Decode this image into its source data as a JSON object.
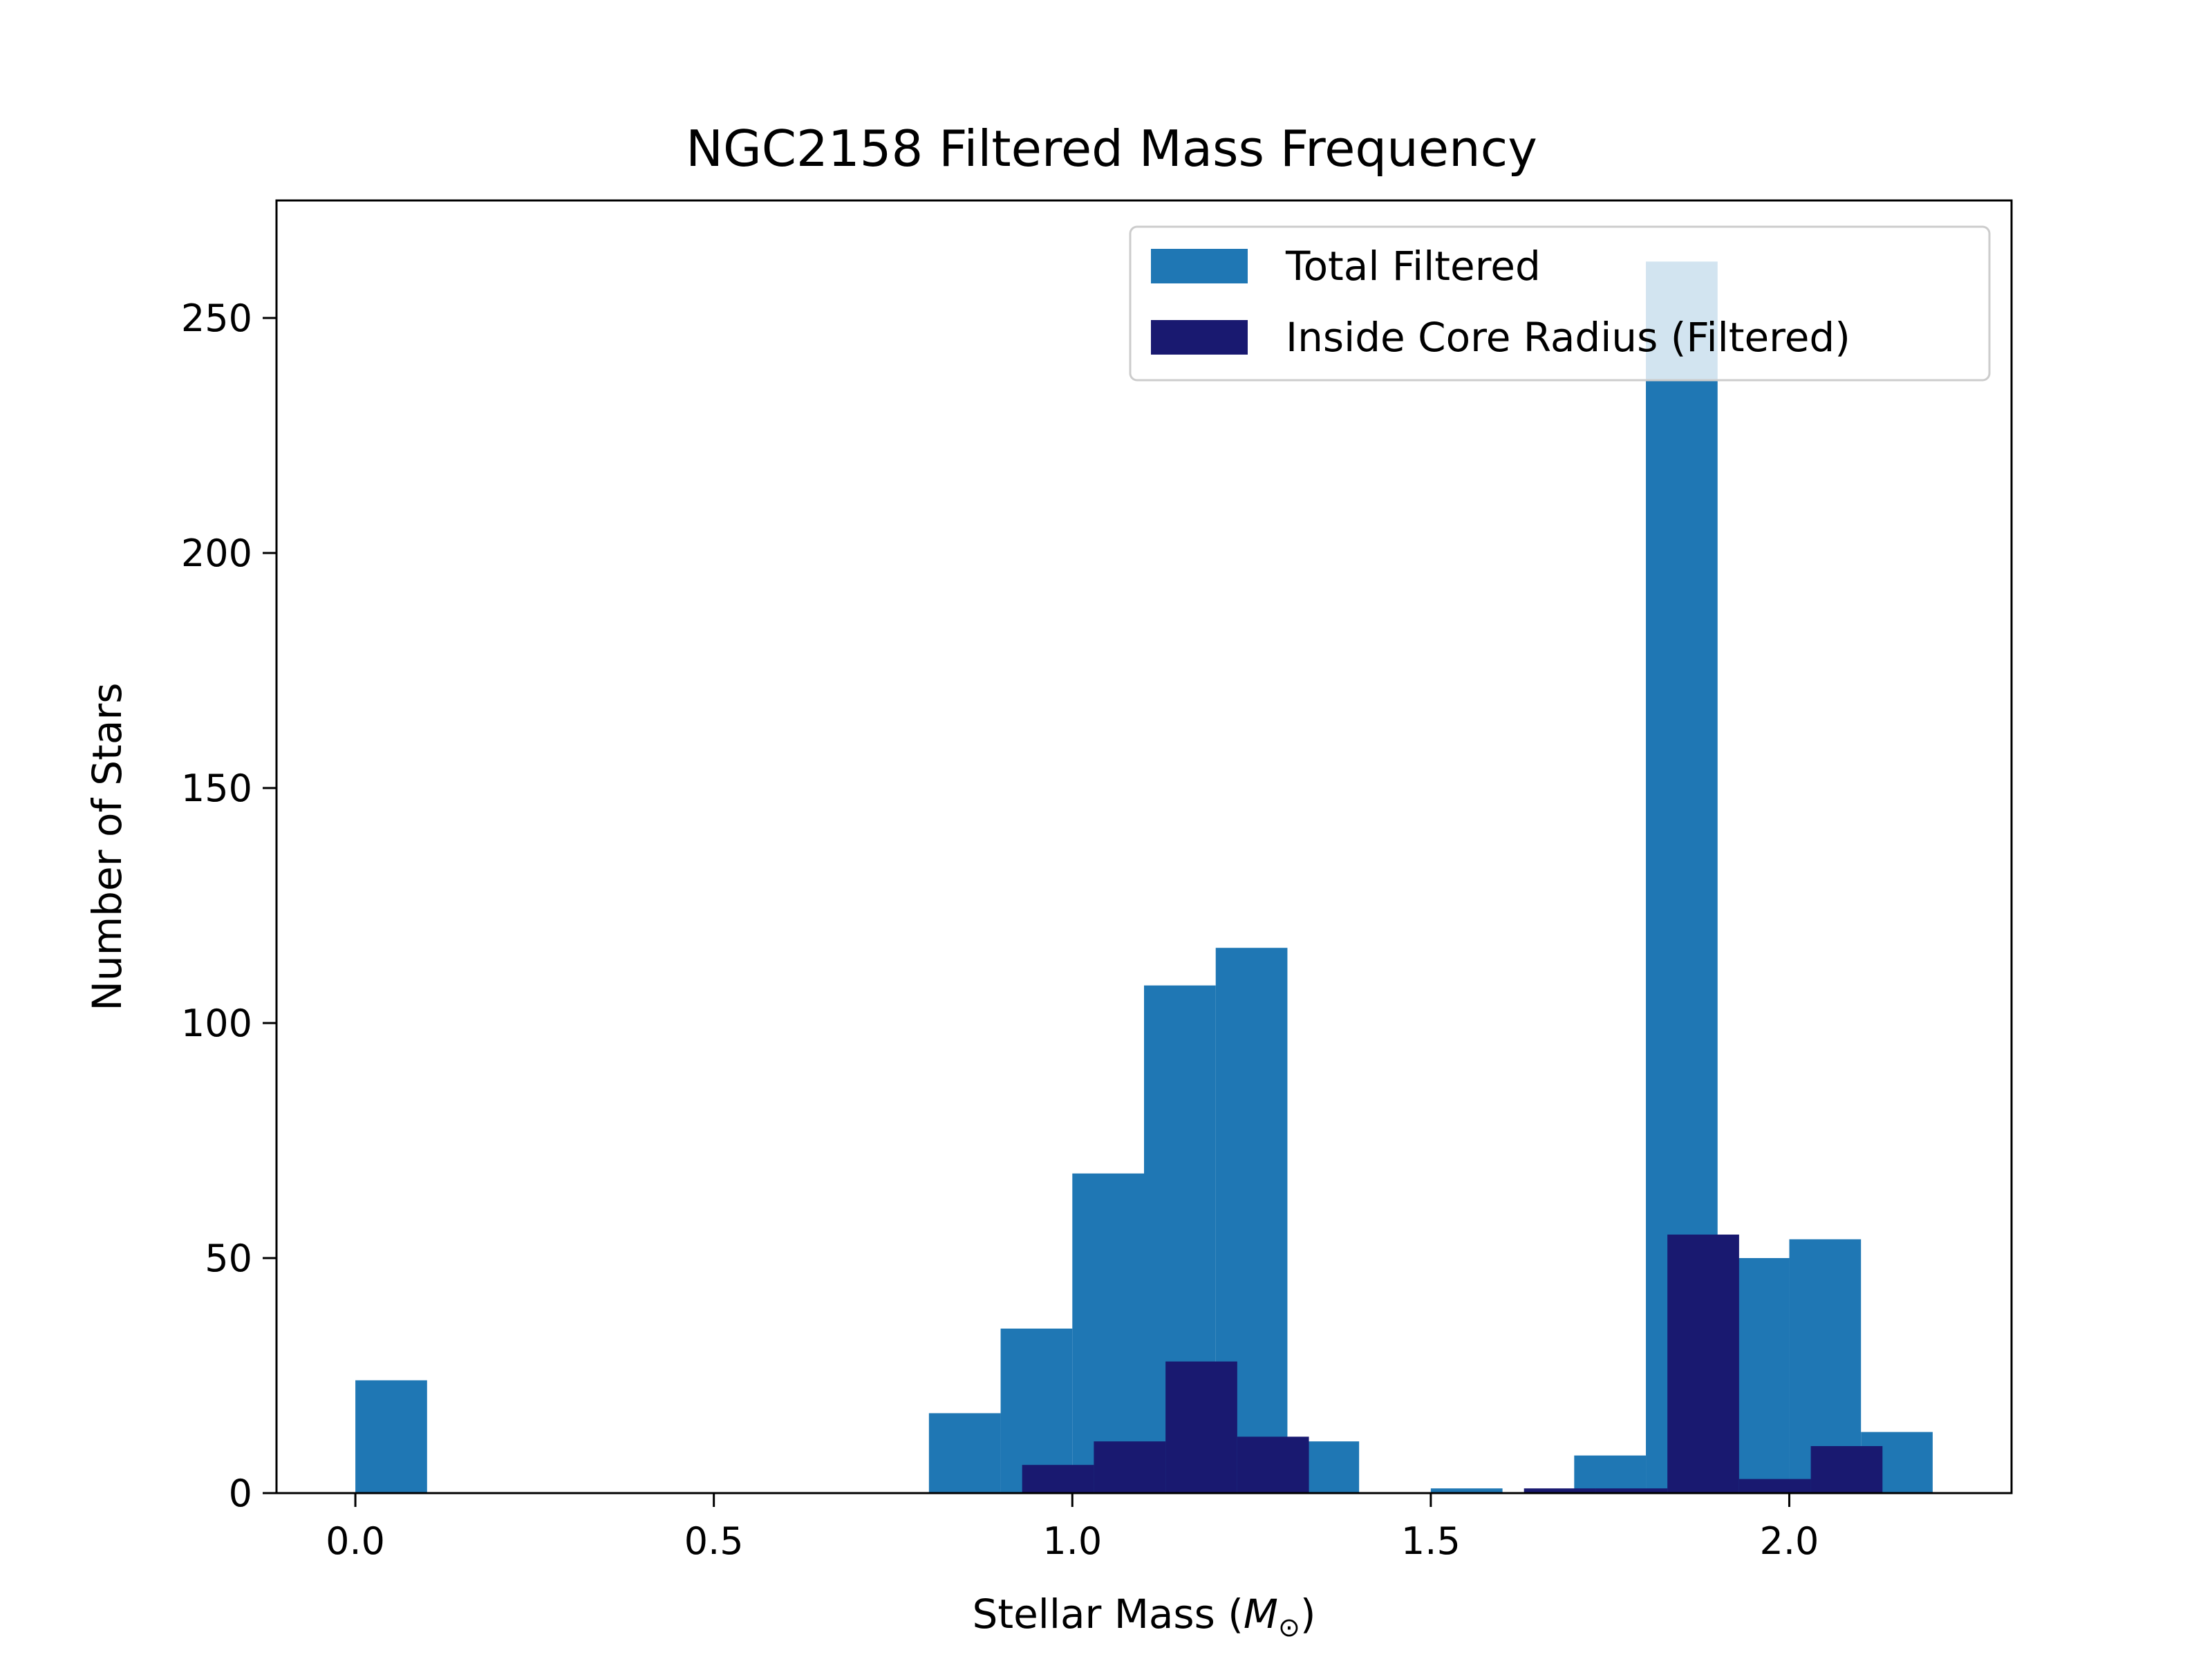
{
  "chart_data": {
    "type": "bar",
    "title": "NGC2158 Filtered Mass Frequency",
    "xlabel_main": "Stellar Mass (",
    "xlabel_symbol": "M",
    "xlabel_sub": "⊙",
    "xlabel_end": ")",
    "ylabel": "Number of Stars",
    "xlim": [
      -0.11,
      2.31
    ],
    "ylim": [
      0,
      275
    ],
    "xticks": [
      0.0,
      0.5,
      1.0,
      1.5,
      2.0
    ],
    "xtick_labels": [
      "0.0",
      "0.5",
      "1.0",
      "1.5",
      "2.0"
    ],
    "yticks": [
      0,
      50,
      100,
      150,
      200,
      250
    ],
    "ytick_labels": [
      "0",
      "50",
      "100",
      "150",
      "200",
      "250"
    ],
    "legend_position": "upper right",
    "series": [
      {
        "name": "Total Filtered",
        "color": "#1f77b4",
        "bins": [
          {
            "x0": 0.0,
            "x1": 0.1,
            "count": 24
          },
          {
            "x0": 0.8,
            "x1": 0.9,
            "count": 17
          },
          {
            "x0": 0.9,
            "x1": 1.0,
            "count": 35
          },
          {
            "x0": 1.0,
            "x1": 1.1,
            "count": 68
          },
          {
            "x0": 1.1,
            "x1": 1.2,
            "count": 108
          },
          {
            "x0": 1.2,
            "x1": 1.3,
            "count": 116
          },
          {
            "x0": 1.3,
            "x1": 1.4,
            "count": 11
          },
          {
            "x0": 1.5,
            "x1": 1.6,
            "count": 1
          },
          {
            "x0": 1.7,
            "x1": 1.8,
            "count": 8
          },
          {
            "x0": 1.8,
            "x1": 1.9,
            "count": 262
          },
          {
            "x0": 1.9,
            "x1": 2.0,
            "count": 50
          },
          {
            "x0": 2.0,
            "x1": 2.1,
            "count": 54
          },
          {
            "x0": 2.1,
            "x1": 2.2,
            "count": 13
          }
        ]
      },
      {
        "name": "Inside Core Radius (Filtered)",
        "color": "#191970",
        "bins": [
          {
            "x0": 0.93,
            "x1": 1.03,
            "count": 6
          },
          {
            "x0": 1.03,
            "x1": 1.13,
            "count": 11
          },
          {
            "x0": 1.13,
            "x1": 1.23,
            "count": 28
          },
          {
            "x0": 1.23,
            "x1": 1.33,
            "count": 12
          },
          {
            "x0": 1.63,
            "x1": 1.73,
            "count": 1
          },
          {
            "x0": 1.73,
            "x1": 1.83,
            "count": 1
          },
          {
            "x0": 1.83,
            "x1": 1.93,
            "count": 55
          },
          {
            "x0": 1.93,
            "x1": 2.03,
            "count": 3
          },
          {
            "x0": 2.03,
            "x1": 2.13,
            "count": 10
          }
        ]
      }
    ]
  }
}
